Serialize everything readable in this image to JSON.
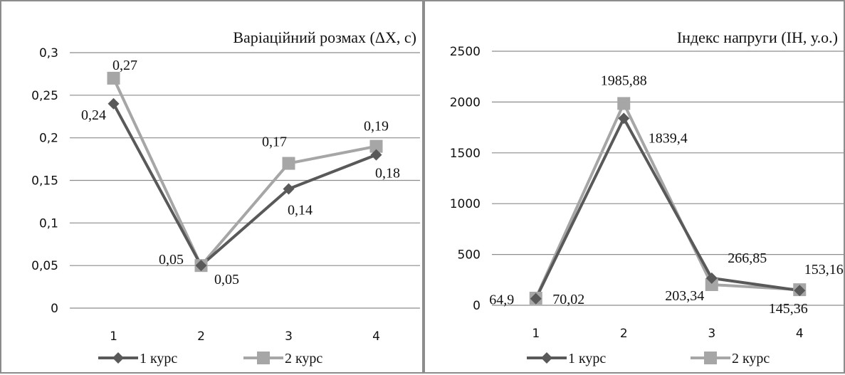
{
  "chart_data": [
    {
      "type": "line",
      "title": "Варіаційний розмах (ΔХ, с)",
      "categories": [
        "1",
        "2",
        "3",
        "4"
      ],
      "ylim": [
        0,
        0.3
      ],
      "yticks": [
        "0",
        "0,05",
        "0,1",
        "0,15",
        "0,2",
        "0,25",
        "0,3"
      ],
      "ytick_values": [
        0,
        0.05,
        0.1,
        0.15,
        0.2,
        0.25,
        0.3
      ],
      "grid": true,
      "legend_position": "bottom",
      "series": [
        {
          "name": "1 курс",
          "values": [
            0.24,
            0.05,
            0.14,
            0.18
          ],
          "labels": [
            "0,24",
            "0,05",
            "0,14",
            "0,18"
          ],
          "color": "#595959",
          "marker": "diamond"
        },
        {
          "name": "2 курс",
          "values": [
            0.27,
            0.05,
            0.17,
            0.19
          ],
          "labels": [
            "0,27",
            "0,05",
            "0,17",
            "0,19"
          ],
          "color": "#a6a6a6",
          "marker": "square"
        }
      ]
    },
    {
      "type": "line",
      "title": "Індекс напруги  (ІН, у.о.)",
      "categories": [
        "1",
        "2",
        "3",
        "4"
      ],
      "ylim": [
        0,
        2500
      ],
      "yticks": [
        "0",
        "500",
        "1000",
        "1500",
        "2000",
        "2500"
      ],
      "ytick_values": [
        0,
        500,
        1000,
        1500,
        2000,
        2500
      ],
      "grid": true,
      "legend_position": "bottom",
      "series": [
        {
          "name": "1 курс",
          "values": [
            64.9,
            1839.4,
            266.85,
            145.36
          ],
          "labels": [
            "64,9",
            "1839,4",
            "266,85",
            "145,36"
          ],
          "color": "#595959",
          "marker": "diamond"
        },
        {
          "name": "2 курс",
          "values": [
            70.02,
            1985.88,
            203.34,
            153.16
          ],
          "labels": [
            "70,02",
            "1985,88",
            "203,34",
            "153,16"
          ],
          "color": "#a6a6a6",
          "marker": "square"
        }
      ]
    }
  ]
}
